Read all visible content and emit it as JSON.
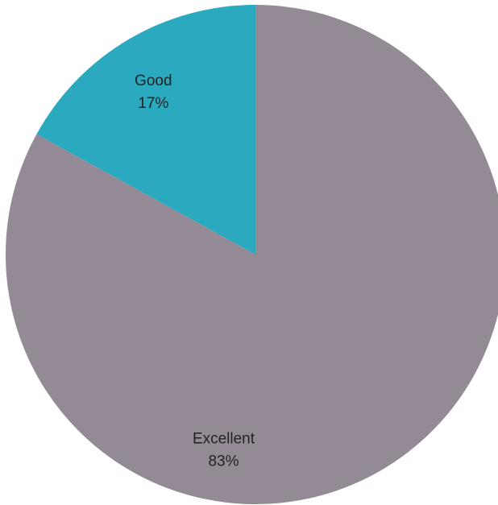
{
  "chart_data": {
    "type": "pie",
    "title": "",
    "slices": [
      {
        "category": "Good",
        "value": 17,
        "value_label": "17%",
        "color": "#2aa9bf"
      },
      {
        "category": "Excellent",
        "value": 83,
        "value_label": "83%",
        "color": "#948a96"
      }
    ],
    "start_angle_deg": 0,
    "direction": "counterclockwise-from-top",
    "legend": "none",
    "data_labels": "category-and-percent"
  }
}
